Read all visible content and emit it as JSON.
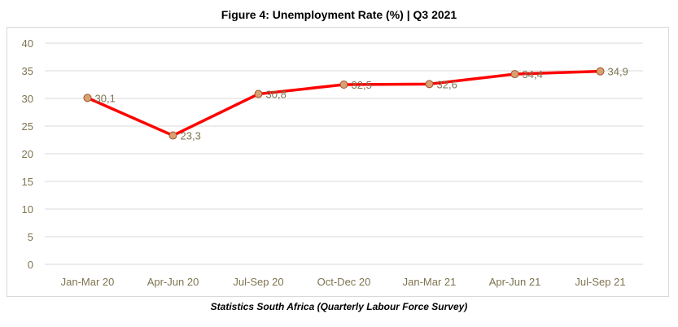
{
  "chart_data": {
    "type": "line",
    "title": "Figure 4: Unemployment Rate (%) | Q3 2021",
    "source": "Statistics South Africa (Quarterly Labour Force Survey)",
    "categories": [
      "Jan-Mar 20",
      "Apr-Jun 20",
      "Jul-Sep 20",
      "Oct-Dec 20",
      "Jan-Mar 21",
      "Apr-Jun 21",
      "Jul-Sep 21"
    ],
    "series": [
      {
        "values": [
          30.1,
          23.3,
          30.8,
          32.5,
          32.6,
          34.4,
          34.9
        ],
        "labels": [
          "30,1",
          "23,3",
          "30,8",
          "32,5",
          "32,6",
          "34,4",
          "34,9"
        ]
      }
    ],
    "ylim": [
      0,
      40
    ],
    "yticks": [
      0,
      5,
      10,
      15,
      20,
      25,
      30,
      35,
      40
    ],
    "grid": true,
    "colors": {
      "line": "#ff0000",
      "marker_fill": "#d9a070",
      "marker_stroke": "#a0522d",
      "grid": "#d9d9d9",
      "tick": "#7f7350"
    }
  }
}
